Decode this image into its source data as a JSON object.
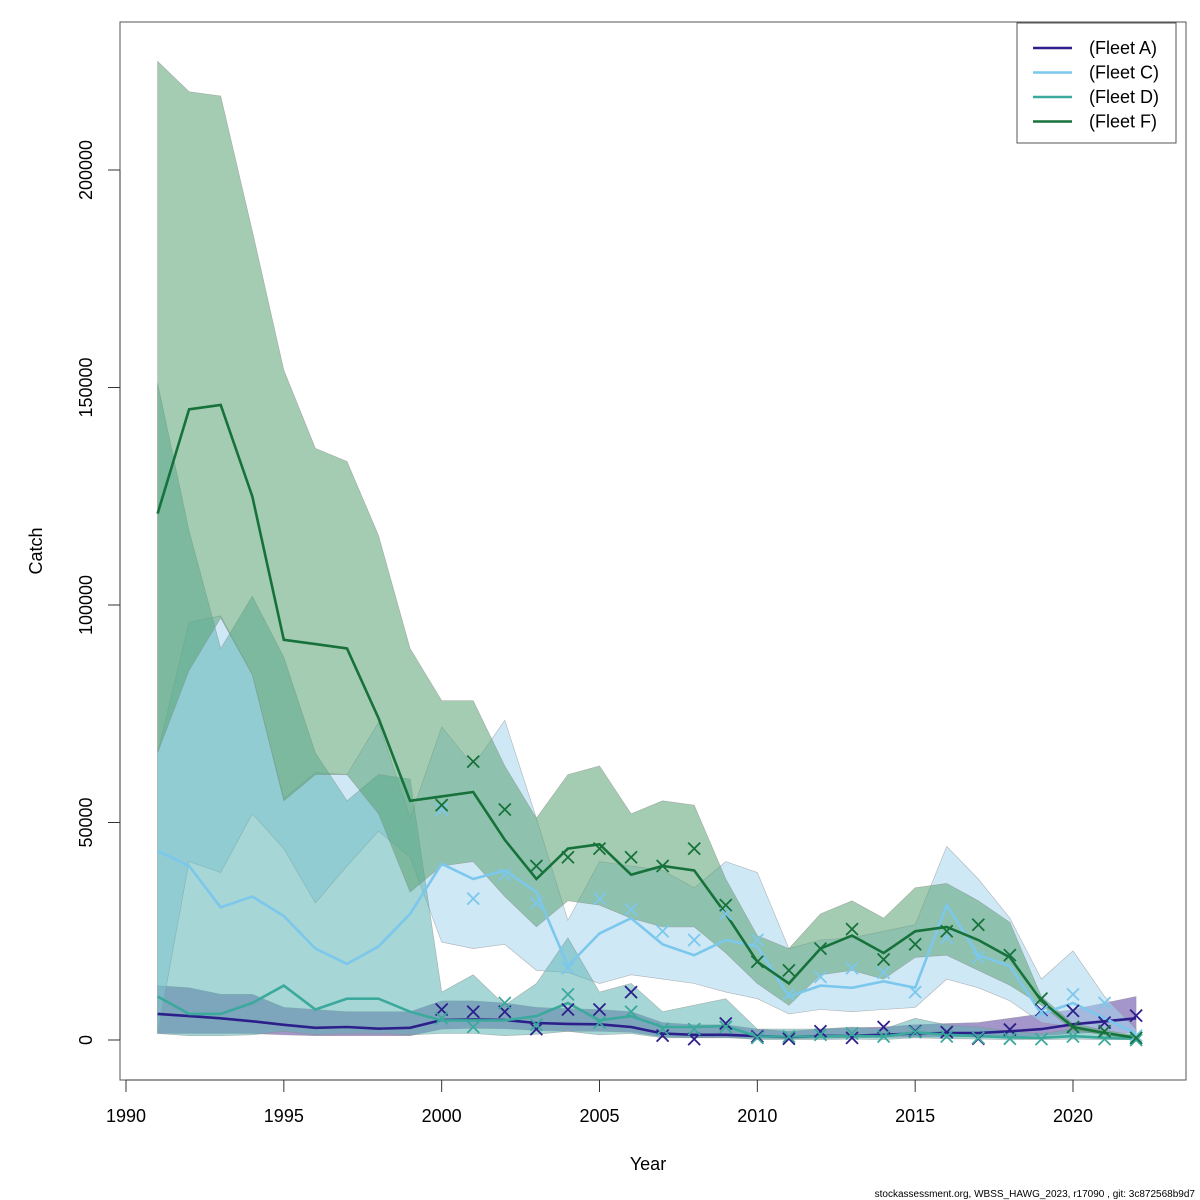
{
  "chart_data": {
    "type": "line",
    "title": "",
    "xlabel": "Year",
    "ylabel": "Catch",
    "xlim": [
      1990,
      2022.5
    ],
    "ylim": [
      -9000,
      235000
    ],
    "x_ticks": [
      1990,
      1995,
      2000,
      2005,
      2010,
      2015,
      2020
    ],
    "y_ticks": [
      0,
      50000,
      100000,
      150000,
      200000
    ],
    "x_tick_labels": [
      "1990",
      "1995",
      "2000",
      "2005",
      "2010",
      "2015",
      "2020"
    ],
    "y_tick_labels": [
      "0",
      "50000",
      "100000",
      "150000",
      "200000"
    ],
    "grid": false,
    "legend_position": "top-right",
    "footer": "stockassessment.org, WBSS_HAWG_2023, r17090 , git: 3c872568b9d7",
    "years": [
      1991,
      1992,
      1993,
      1994,
      1995,
      1996,
      1997,
      1998,
      1999,
      2000,
      2001,
      2002,
      2003,
      2004,
      2005,
      2006,
      2007,
      2008,
      2009,
      2010,
      2011,
      2012,
      2013,
      2014,
      2015,
      2016,
      2017,
      2018,
      2019,
      2020,
      2021,
      2022
    ],
    "series": [
      {
        "name": "(Fleet A)",
        "color": "#2c1f8a",
        "band_color": "#5a3f9e",
        "median": [
          6000,
          5500,
          5000,
          4300,
          3500,
          2800,
          3000,
          2600,
          2800,
          4600,
          4700,
          4600,
          3900,
          3700,
          3600,
          3000,
          1500,
          1200,
          1200,
          900,
          700,
          900,
          1000,
          1200,
          1500,
          1600,
          1600,
          2000,
          2500,
          3600,
          4300,
          5000
        ],
        "lower": [
          1500,
          1500,
          1500,
          1500,
          1200,
          1000,
          1000,
          1000,
          1000,
          2500,
          2700,
          2600,
          2200,
          2000,
          2000,
          1800,
          700,
          500,
          500,
          400,
          300,
          400,
          500,
          600,
          700,
          700,
          700,
          800,
          1000,
          1500,
          1800,
          1500
        ],
        "upper": [
          12500,
          12000,
          10500,
          10500,
          7500,
          7000,
          6500,
          6500,
          6500,
          9000,
          9000,
          8500,
          7500,
          7200,
          7000,
          6500,
          4000,
          3500,
          3500,
          2500,
          2000,
          2500,
          2800,
          3000,
          3500,
          3800,
          4000,
          5000,
          6000,
          7000,
          8500,
          10000
        ],
        "observed": [
          null,
          null,
          null,
          null,
          null,
          null,
          null,
          null,
          null,
          7000,
          6500,
          6500,
          2500,
          7000,
          7000,
          11000,
          1000,
          200,
          3800,
          800,
          300,
          2000,
          500,
          3000,
          2000,
          1800,
          300,
          2400,
          6800,
          6700,
          4000,
          5600
        ]
      },
      {
        "name": "(Fleet C)",
        "color": "#7cc7ec",
        "band_color": "#a6d5ef",
        "median": [
          43500,
          40000,
          30500,
          33000,
          28500,
          21000,
          17500,
          21500,
          29000,
          40500,
          37000,
          39000,
          34000,
          17000,
          24500,
          28000,
          22000,
          19500,
          23000,
          21500,
          10000,
          12500,
          12000,
          13500,
          12000,
          31000,
          19500,
          17000,
          6000,
          8500,
          5000,
          1500
        ],
        "lower": [
          1500,
          41000,
          38500,
          52000,
          44000,
          31500,
          40000,
          48000,
          42000,
          22500,
          21000,
          22000,
          16000,
          15500,
          13000,
          15000,
          14000,
          13000,
          11000,
          9500,
          6000,
          7000,
          6500,
          7000,
          7500,
          14000,
          12000,
          9000,
          4000,
          3000,
          2000,
          500
        ],
        "upper": [
          66000,
          96000,
          97500,
          84000,
          55500,
          61500,
          61000,
          73000,
          51000,
          72000,
          63000,
          73500,
          51000,
          27500,
          41000,
          40000,
          39000,
          35000,
          41000,
          38500,
          21000,
          23000,
          23500,
          25000,
          26500,
          44500,
          37000,
          28000,
          14000,
          20500,
          10000,
          2500
        ],
        "observed": [
          null,
          null,
          null,
          null,
          null,
          null,
          null,
          null,
          null,
          53000,
          32500,
          38000,
          31500,
          16500,
          32500,
          30000,
          25000,
          23000,
          29000,
          23000,
          10500,
          14500,
          16500,
          15500,
          11000,
          23500,
          19000,
          19500,
          6500,
          10500,
          8500,
          1000
        ]
      },
      {
        "name": "(Fleet D)",
        "color": "#3ba99c",
        "band_color": "#5cb5b3",
        "median": [
          10000,
          6000,
          6000,
          8500,
          12500,
          7000,
          9500,
          9500,
          6500,
          4500,
          4500,
          4500,
          5500,
          8500,
          4500,
          5500,
          3000,
          3000,
          3200,
          800,
          800,
          800,
          1000,
          800,
          1800,
          1200,
          900,
          600,
          500,
          900,
          500,
          300
        ],
        "lower": [
          1500,
          1000,
          1000,
          1200,
          2000,
          1200,
          1500,
          1500,
          1200,
          1500,
          1500,
          1000,
          1300,
          2000,
          1200,
          1500,
          500,
          500,
          600,
          100,
          100,
          100,
          200,
          100,
          500,
          300,
          200,
          100,
          100,
          200,
          100,
          50
        ],
        "upper": [
          151000,
          117000,
          90000,
          102000,
          88000,
          66000,
          55000,
          61000,
          60000,
          11000,
          15000,
          8000,
          13000,
          23500,
          11000,
          13000,
          6500,
          8000,
          9500,
          2500,
          2500,
          2500,
          3000,
          2500,
          5000,
          3500,
          3000,
          2000,
          1500,
          2500,
          1500,
          800
        ],
        "observed": [
          null,
          null,
          null,
          null,
          null,
          null,
          null,
          null,
          null,
          5000,
          3000,
          8500,
          3500,
          10500,
          4000,
          6500,
          2500,
          2500,
          3000,
          500,
          800,
          1200,
          1500,
          800,
          1800,
          800,
          500,
          300,
          200,
          800,
          200,
          0
        ]
      },
      {
        "name": "(Fleet F)",
        "color": "#16723a",
        "band_color": "#5aa273",
        "median": [
          121000,
          145000,
          146000,
          125000,
          92000,
          91000,
          90000,
          74000,
          55000,
          56000,
          57000,
          46000,
          37000,
          44000,
          45000,
          38000,
          40000,
          39000,
          29000,
          18000,
          13000,
          21000,
          24000,
          20000,
          25000,
          26000,
          23000,
          19000,
          9000,
          3000,
          1600,
          500
        ],
        "lower": [
          66000,
          85000,
          97000,
          84000,
          55000,
          61000,
          61000,
          52000,
          34000,
          40000,
          41000,
          33000,
          26000,
          32000,
          31000,
          28000,
          26000,
          26000,
          20000,
          13000,
          8000,
          15000,
          16000,
          14000,
          19000,
          19500,
          16000,
          12600,
          8000,
          2300,
          1100,
          200
        ],
        "upper": [
          225000,
          218000,
          217000,
          186000,
          154000,
          136000,
          133000,
          116000,
          90000,
          78000,
          78000,
          63000,
          51000,
          61000,
          63000,
          52000,
          55000,
          54000,
          37000,
          24000,
          21000,
          29000,
          32000,
          28000,
          35000,
          36000,
          32000,
          27000,
          10000,
          3700,
          2300,
          1000
        ],
        "observed": [
          null,
          null,
          null,
          null,
          null,
          null,
          null,
          null,
          null,
          54000,
          64000,
          53000,
          40000,
          42000,
          44000,
          42000,
          40000,
          44000,
          31000,
          18000,
          16000,
          21000,
          25500,
          18500,
          22000,
          25000,
          26500,
          19500,
          9500,
          3000,
          2000,
          500
        ]
      }
    ]
  }
}
